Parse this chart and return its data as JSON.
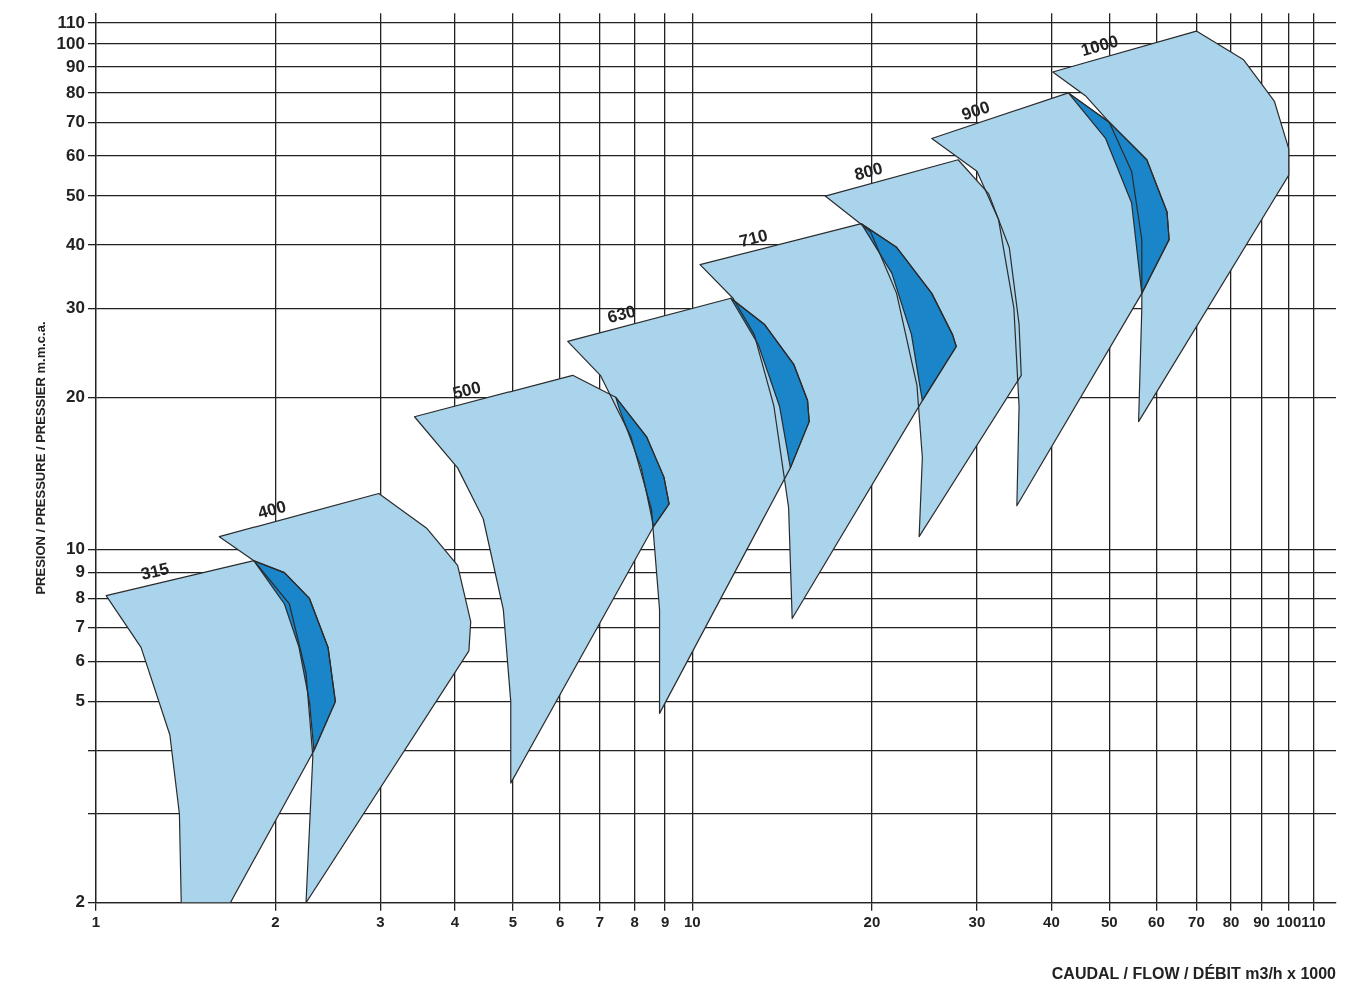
{
  "chart_data": {
    "type": "area",
    "xlabel": "CAUDAL / FLOW / DÉBIT m3/h x 1000",
    "ylabel": "PRESION / PRESSURE / PRESSIER m.m.c.a.",
    "xlim": [
      1,
      120
    ],
    "ylim": [
      2,
      115
    ],
    "log": "xy",
    "grid": true,
    "marker": "none",
    "xticks": [
      1,
      2,
      3,
      4,
      5,
      6,
      7,
      8,
      9,
      10,
      20,
      30,
      40,
      50,
      60,
      70,
      80,
      90,
      100,
      110
    ],
    "yticks": [
      2,
      {
        "value": 3,
        "label": null
      },
      {
        "value": 4,
        "label": null
      },
      5,
      6,
      7,
      8,
      9,
      10,
      20,
      30,
      40,
      50,
      60,
      70,
      80,
      90,
      100,
      110
    ],
    "series": [
      {
        "name": "400",
        "color": "#a9d4ec",
        "x": [
          1.61,
          2.98,
          3.59,
          4.04,
          4.25,
          4.22,
          2.25,
          2.31,
          2.25,
          2.11,
          1.84,
          1.61
        ],
        "values": [
          10.6,
          12.9,
          11,
          9.3,
          7.2,
          6.3,
          2,
          3.9,
          5.7,
          7.8,
          9.5,
          10.6
        ]
      },
      {
        "name": "315",
        "color": "#a9d4ec",
        "x": [
          1.04,
          1.84,
          2.07,
          2.28,
          2.45,
          2.52,
          2.32,
          1.68,
          1.39,
          1.38,
          1.33,
          1.19,
          1.04
        ],
        "values": [
          8.1,
          9.5,
          9,
          8,
          6.4,
          5,
          4,
          2,
          2,
          3,
          4.3,
          6.4,
          8.1
        ]
      },
      {
        "name": "500",
        "color": "#a9d4ec",
        "x": [
          3.42,
          6.3,
          7.44,
          8.38,
          8.96,
          9.14,
          8.61,
          4.96,
          4.96,
          4.82,
          4.46,
          4.04,
          3.42
        ],
        "values": [
          18.3,
          22.1,
          20,
          16.7,
          13.9,
          12.3,
          11.1,
          3.45,
          5,
          7.6,
          11.5,
          14.5,
          18.3
        ]
      },
      {
        "name": "630",
        "color": "#a9d4ec",
        "x": [
          6.18,
          11.6,
          13.2,
          14.8,
          15.6,
          15.7,
          14.6,
          8.81,
          8.81,
          8.54,
          7.89,
          7.01,
          6.18
        ],
        "values": [
          25.8,
          31.4,
          27.9,
          23.2,
          19.7,
          17.9,
          14.5,
          4.74,
          7.6,
          12,
          16.7,
          22.1,
          25.8
        ]
      },
      {
        "name": "710",
        "color": "#a9d4ec",
        "x": [
          10.3,
          19.2,
          22,
          25.2,
          27.3,
          27.7,
          24.3,
          14.7,
          14.5,
          13.7,
          12.7,
          11.7,
          10.3
        ],
        "values": [
          36.6,
          44.1,
          39.6,
          32.1,
          26.6,
          25.2,
          19.7,
          7.3,
          12.1,
          19.2,
          26.6,
          31.4,
          36.6
        ]
      },
      {
        "name": "800",
        "color": "#a9d4ec",
        "x": [
          16.7,
          27.9,
          31.4,
          34,
          35.3,
          35.6,
          24,
          24.3,
          23.8,
          22,
          19.9,
          16.7
        ],
        "values": [
          50,
          59,
          50.5,
          39.5,
          27.9,
          22.1,
          10.6,
          15.2,
          21.1,
          32.1,
          42.5,
          50
        ]
      },
      {
        "name": "900",
        "color": "#a9d4ec",
        "x": [
          25.2,
          42.7,
          50,
          57.8,
          62.5,
          63,
          56.7,
          35,
          35.3,
          34.6,
          32.6,
          30,
          25.2
        ],
        "values": [
          65,
          80,
          70,
          59,
          46.5,
          41,
          32.1,
          12.2,
          19.2,
          30,
          45,
          56,
          65
        ]
      },
      {
        "name": "1000",
        "color": "#a9d4ec",
        "x": [
          40.2,
          70,
          84,
          94.6,
          100,
          100,
          56,
          56.7,
          56.7,
          54.5,
          50,
          45.6,
          40.2
        ],
        "values": [
          88,
          106,
          93,
          77,
          62,
          55,
          17.9,
          30,
          41,
          56,
          70,
          79,
          88
        ]
      },
      {
        "color": "#1a85c8",
        "x": [
          1.84,
          2.07,
          2.28,
          2.45,
          2.52,
          2.32,
          2.28,
          2.19,
          2.07,
          1.84
        ],
        "values": [
          9.5,
          9,
          8,
          6.4,
          5,
          4,
          5,
          6.4,
          7.8,
          9.5
        ]
      },
      {
        "color": "#1a85c8",
        "x": [
          7.44,
          8.38,
          8.96,
          9.14,
          8.61,
          8.21,
          7.53,
          7.44
        ],
        "values": [
          20,
          16.7,
          13.9,
          12.3,
          11.1,
          14.5,
          19.1,
          20
        ]
      },
      {
        "color": "#1a85c8",
        "x": [
          11.6,
          13.2,
          14.8,
          15.6,
          15.7,
          14.6,
          14,
          12.9,
          11.6
        ],
        "values": [
          31.4,
          27.9,
          23.2,
          19.7,
          17.9,
          14.5,
          19.2,
          25.4,
          31.4
        ]
      },
      {
        "color": "#1a85c8",
        "x": [
          19.2,
          22,
          25.2,
          27.3,
          27.7,
          24.3,
          23.3,
          21.6,
          19.2
        ],
        "values": [
          44.1,
          39.6,
          32.1,
          26.6,
          25.2,
          19.7,
          26.6,
          35.2,
          44.1
        ]
      },
      {
        "color": "#1a85c8",
        "x": [
          42.7,
          50,
          57.8,
          62.5,
          63,
          56.7,
          54.5,
          49.3,
          42.7
        ],
        "values": [
          80,
          70,
          59,
          46.5,
          41,
          32.1,
          48.5,
          65,
          80
        ]
      }
    ]
  }
}
